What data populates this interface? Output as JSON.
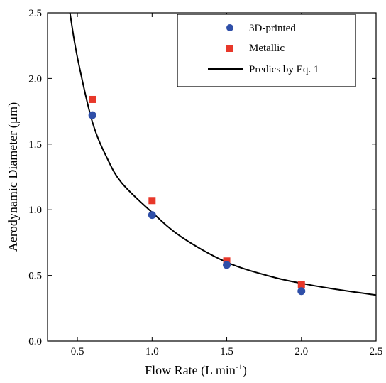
{
  "chart_data": {
    "type": "scatter",
    "xlabel": "Flow Rate (L min",
    "xlabel_sup": "-1",
    "xlabel_tail": ")",
    "ylabel": "Aerodynamic Diameter (µm)",
    "xlim": [
      0.3,
      2.5
    ],
    "ylim": [
      0.0,
      2.5
    ],
    "xticks": [
      "0.5",
      "1.0",
      "1.5",
      "2.0",
      "2.5"
    ],
    "xtick_values": [
      0.5,
      1.0,
      1.5,
      2.0,
      2.5
    ],
    "yticks": [
      "0.0",
      "0.5",
      "1.0",
      "1.5",
      "2.0",
      "2.5"
    ],
    "ytick_values": [
      0.0,
      0.5,
      1.0,
      1.5,
      2.0,
      2.5
    ],
    "grid": false,
    "legend_position": "top-right",
    "series": [
      {
        "name": "3D-printed",
        "marker": "circle",
        "color": "#2f4fa8",
        "x": [
          0.6,
          1.0,
          1.5,
          2.0
        ],
        "y": [
          1.72,
          0.96,
          0.58,
          0.38
        ]
      },
      {
        "name": "Metallic",
        "marker": "square",
        "color": "#e8382a",
        "x": [
          0.6,
          1.0,
          1.5,
          2.0
        ],
        "y": [
          1.84,
          1.07,
          0.61,
          0.43
        ]
      },
      {
        "name": "Predics by Eq. 1",
        "marker": "line",
        "color": "#000000",
        "formula_points": {
          "x": [
            0.45,
            0.5,
            0.6,
            0.7,
            0.8,
            1.0,
            1.2,
            1.5,
            1.8,
            2.0,
            2.2,
            2.5
          ],
          "y": [
            2.5,
            2.16,
            1.67,
            1.39,
            1.2,
            0.98,
            0.79,
            0.6,
            0.49,
            0.44,
            0.4,
            0.35
          ]
        }
      }
    ]
  }
}
